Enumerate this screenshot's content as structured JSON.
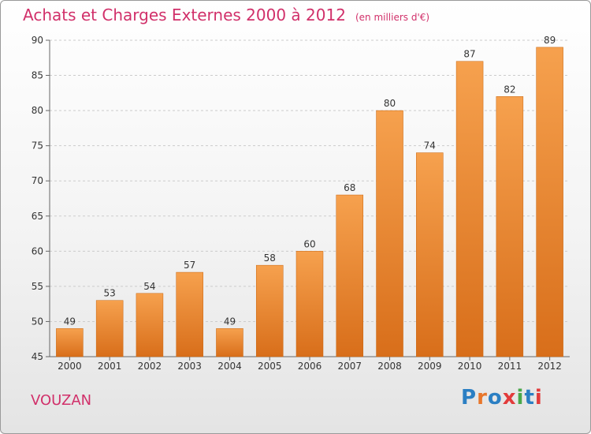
{
  "header": {
    "title": "Achats et Charges Externes 2000 à 2012",
    "unit": "(en milliers d'€)"
  },
  "footer": {
    "commune": "VOUZAN",
    "logo_text": "Proxiti"
  },
  "colors": {
    "title": "#d1306a",
    "bar_light": "#f6a14e",
    "bar_dark": "#d86e1a",
    "grid": "#cccccc",
    "logo_letters": [
      "#2b7fc3",
      "#e8762b",
      "#2b7fc3",
      "#e23b3b",
      "#49a84a",
      "#2b7fc3",
      "#e23b3b"
    ]
  },
  "chart_data": {
    "type": "bar",
    "categories": [
      "2000",
      "2001",
      "2002",
      "2003",
      "2004",
      "2005",
      "2006",
      "2007",
      "2008",
      "2009",
      "2010",
      "2011",
      "2012"
    ],
    "values": [
      49,
      53,
      54,
      57,
      49,
      58,
      60,
      68,
      80,
      74,
      87,
      82,
      89
    ],
    "data_labels": [
      "49",
      "53",
      "54",
      "57",
      "49",
      "58",
      "60",
      "68",
      "80",
      "74",
      "87",
      "82",
      "89"
    ],
    "ylim": [
      45,
      90
    ],
    "yticks": [
      45,
      50,
      55,
      60,
      65,
      70,
      75,
      80,
      85,
      90
    ],
    "grid": "horizontal-dashed",
    "legend": "none"
  }
}
